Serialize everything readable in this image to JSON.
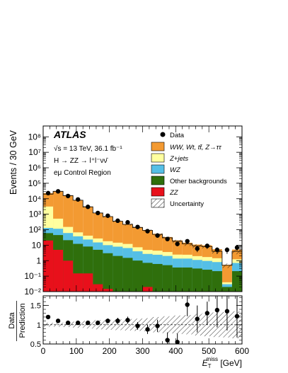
{
  "chart_data": [
    {
      "type": "histogram-stack",
      "experiment": "ATLAS",
      "energy_lumi": "√s = 13 TeV, 36.1 fb⁻¹",
      "process": "H → ZZ → l⁺l⁻νν̄",
      "region": "eμ Control Region",
      "ylabel": "Events / 30 GeV",
      "log_y": true,
      "ylim": [
        0.01,
        500000000
      ],
      "xlim": [
        0,
        600
      ],
      "bin_width": 30,
      "x_bin_edges": [
        0,
        30,
        60,
        90,
        120,
        150,
        180,
        210,
        240,
        270,
        300,
        330,
        360,
        390,
        420,
        450,
        480,
        510,
        540,
        570,
        600
      ],
      "y_ticks": [
        0.01,
        0.1,
        1,
        10,
        100,
        1000,
        10000,
        100000,
        1000000,
        10000000,
        100000000
      ],
      "y_tick_labels": [
        "10⁻²",
        "10⁻¹",
        "1",
        "10",
        "10²",
        "10³",
        "10⁴",
        "10⁵",
        "10⁶",
        "10⁷",
        "10⁸"
      ],
      "legend_position": "top-right",
      "series": [
        {
          "name": "ZZ",
          "color": "#e8101b",
          "values": [
            20,
            5,
            1,
            0.15,
            0.15,
            0.03,
            0.015,
            0.01,
            0.01,
            0.01,
            0.02,
            0.01,
            0.01,
            0.01,
            0.01,
            0.01,
            0.01,
            0.01,
            0.01,
            0.01
          ]
        },
        {
          "name": "Other backgrounds",
          "color": "#2f6f0c",
          "values": [
            40,
            40,
            20,
            12,
            8,
            5,
            3,
            2,
            1.5,
            1,
            0.7,
            0.6,
            0.5,
            0.35,
            0.35,
            0.3,
            0.25,
            0.2,
            0.01,
            0.2
          ]
        },
        {
          "name": "WZ",
          "color": "#55bfe6",
          "values": [
            70,
            70,
            40,
            25,
            15,
            10,
            7,
            6,
            5,
            3,
            2,
            1.8,
            1.5,
            1,
            1,
            0.8,
            0.7,
            0.6,
            0.01,
            0.5
          ]
        },
        {
          "name": "Z+jets",
          "color": "#ffff9f",
          "values": [
            3000,
            400,
            90,
            30,
            18,
            12,
            8,
            6.5,
            5.5,
            3.3,
            2.2,
            2,
            1.6,
            1.1,
            1.05,
            0.85,
            0.75,
            0.62,
            0.01,
            0.52
          ]
        },
        {
          "name": "WW, Wt, tt̄, Z→ττ",
          "color": "#f39a32",
          "values": [
            20000,
            30000,
            16000,
            8000,
            3000,
            1200,
            700,
            350,
            220,
            140,
            90,
            50,
            30,
            18,
            12,
            9,
            8,
            4,
            0.5,
            4
          ]
        }
      ],
      "total_mc": [
        20000,
        30000,
        16000,
        8000,
        3000,
        1200,
        700,
        350,
        220,
        140,
        90,
        50,
        30,
        18,
        12,
        9,
        8,
        4,
        0.5,
        4
      ],
      "data": {
        "name": "Data",
        "values": [
          23000,
          30000,
          15000,
          9000,
          3000,
          1200,
          800,
          380,
          300,
          150,
          80,
          42,
          25,
          12,
          18,
          6,
          9,
          5,
          5,
          7
        ]
      },
      "uncertainty_label": "Uncertainty"
    },
    {
      "type": "ratio",
      "ylabel_top": "Data",
      "ylabel_bottom": "Prediction",
      "xlabel_symbol": "E",
      "xlabel_sub": "T",
      "xlabel_sup": "miss",
      "xlabel_unit": " [GeV]",
      "xlim": [
        0,
        600
      ],
      "ylim": [
        0.5,
        1.75
      ],
      "y_ticks": [
        0.5,
        1,
        1.5
      ],
      "y_tick_labels": [
        "0.5",
        "1",
        "1.5"
      ],
      "x_ticks": [
        0,
        100,
        200,
        300,
        400,
        500,
        600
      ],
      "x_tick_labels": [
        "0",
        "100",
        "200",
        "300",
        "400",
        "500",
        "600"
      ],
      "x": [
        15,
        45,
        75,
        105,
        135,
        165,
        195,
        225,
        255,
        285,
        315,
        345,
        375,
        405,
        435,
        465,
        495,
        525,
        555,
        585
      ],
      "values": [
        1.2,
        1.1,
        1.05,
        1.05,
        1.05,
        1.05,
        1.1,
        1.1,
        1.12,
        0.97,
        0.88,
        0.97,
        0.6,
        0.55,
        1.52,
        1.15,
        1.3,
        1.38,
        1.35,
        1.22
      ],
      "errors": [
        0.02,
        0.02,
        0.02,
        0.03,
        0.04,
        0.05,
        0.06,
        0.08,
        0.09,
        0.1,
        0.12,
        0.16,
        0.2,
        0.22,
        0.3,
        0.35,
        0.3,
        0.45,
        0.5,
        0.55
      ],
      "band": [
        0.05,
        0.05,
        0.06,
        0.08,
        0.1,
        0.12,
        0.13,
        0.14,
        0.15,
        0.16,
        0.17,
        0.2,
        0.22,
        0.24,
        0.25,
        0.28,
        0.3,
        0.32,
        0.33,
        0.35
      ]
    }
  ]
}
